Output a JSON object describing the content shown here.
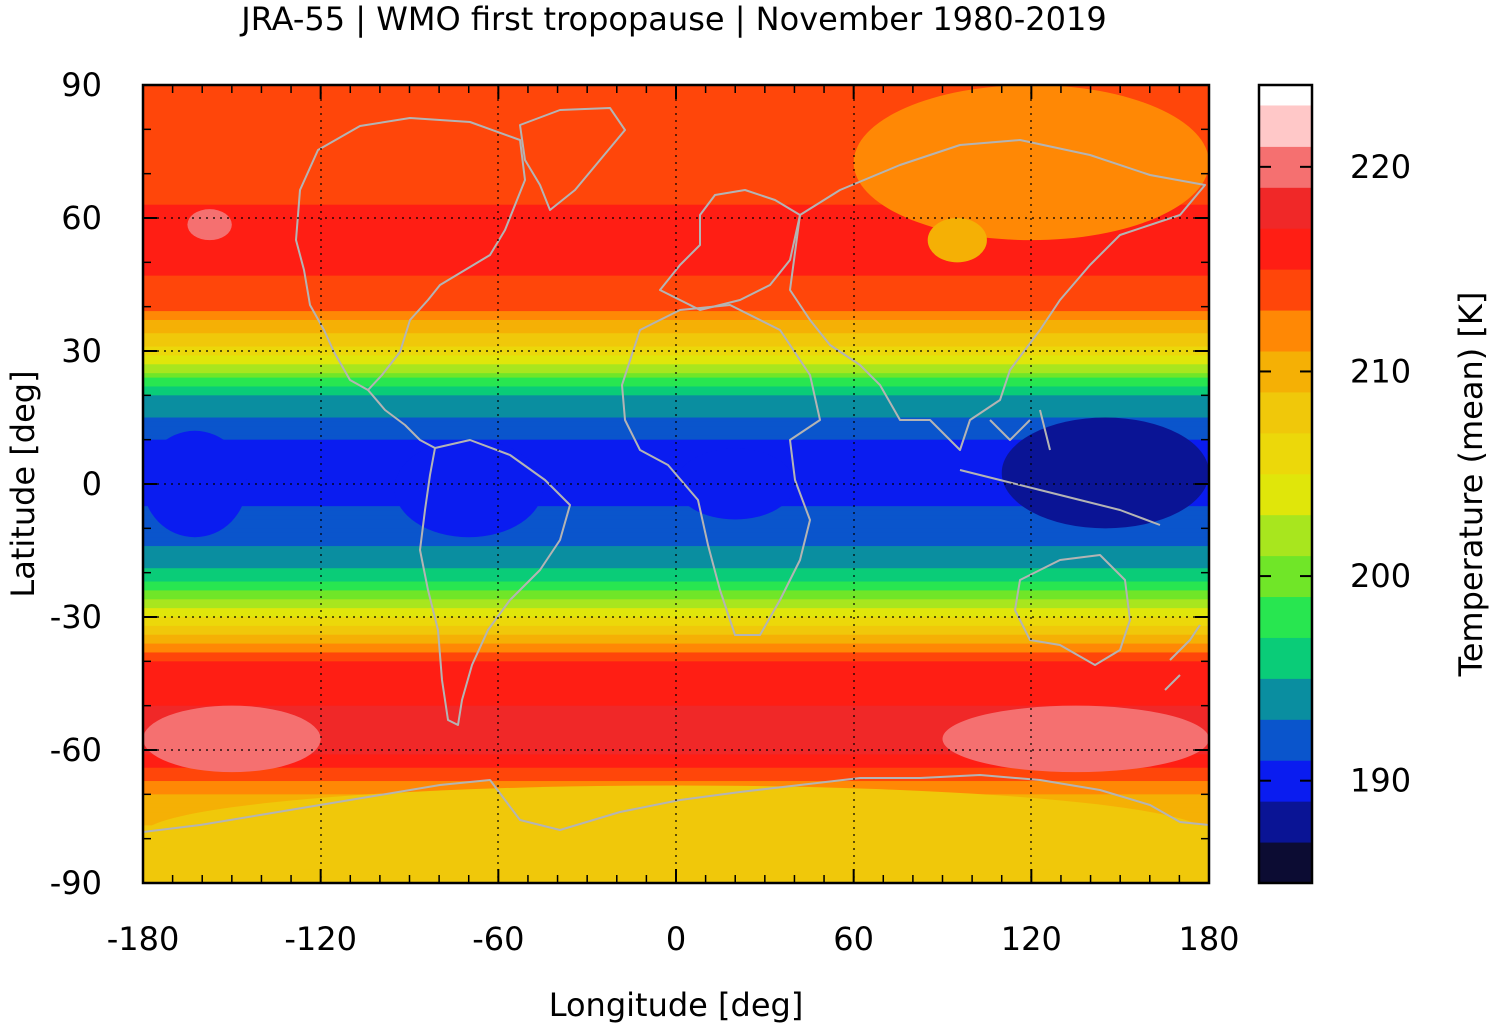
{
  "chart_data": {
    "type": "heatmap",
    "title": "JRA-55 | WMO first tropopause | November 1980-2019",
    "xlabel": "Longitude [deg]",
    "ylabel": "Latitude [deg]",
    "colorbar_label": "Temperature (mean) [K]",
    "xlim": [
      -180,
      180
    ],
    "ylim": [
      -90,
      90
    ],
    "x_ticks": [
      -180,
      -120,
      -60,
      0,
      60,
      120,
      180
    ],
    "y_ticks": [
      90,
      60,
      30,
      0,
      -30,
      -60,
      -90
    ],
    "x_tick_labels": [
      "-180",
      "-120",
      "-60",
      "0",
      "60",
      "120",
      "180"
    ],
    "y_tick_labels": [
      "90",
      "60",
      "30",
      "0",
      "-30",
      "-60",
      "-90"
    ],
    "colorbar_ticks": [
      190,
      200,
      210,
      220
    ],
    "colorbar_tick_labels": [
      "190",
      "200",
      "210",
      "220"
    ],
    "colorbar_range": [
      185,
      224
    ],
    "levels_step": 2,
    "grid": true,
    "colormap": [
      {
        "from": 185,
        "to": 187,
        "color": "#0c0c33"
      },
      {
        "from": 187,
        "to": 189,
        "color": "#0a1495"
      },
      {
        "from": 189,
        "to": 191,
        "color": "#0a1cf0"
      },
      {
        "from": 191,
        "to": 193,
        "color": "#0a55cc"
      },
      {
        "from": 193,
        "to": 195,
        "color": "#0a8ea0"
      },
      {
        "from": 195,
        "to": 197,
        "color": "#0acc78"
      },
      {
        "from": 197,
        "to": 199,
        "color": "#28e650"
      },
      {
        "from": 199,
        "to": 201,
        "color": "#70e628"
      },
      {
        "from": 201,
        "to": 203,
        "color": "#a8e61e"
      },
      {
        "from": 203,
        "to": 205,
        "color": "#e0e60a"
      },
      {
        "from": 205,
        "to": 207,
        "color": "#ecd80a"
      },
      {
        "from": 207,
        "to": 209,
        "color": "#f0c80a"
      },
      {
        "from": 209,
        "to": 211,
        "color": "#f5b005"
      },
      {
        "from": 211,
        "to": 213,
        "color": "#ff8805"
      },
      {
        "from": 213,
        "to": 215,
        "color": "#ff460a"
      },
      {
        "from": 215,
        "to": 217,
        "color": "#ff1e14"
      },
      {
        "from": 217,
        "to": 219,
        "color": "#f02828"
      },
      {
        "from": 219,
        "to": 221,
        "color": "#f57070"
      },
      {
        "from": 221,
        "to": 223,
        "color": "#ffc8c8"
      }
    ],
    "zonal_mean_profile": [
      {
        "lat": -90,
        "temp": 207.5
      },
      {
        "lat": -80,
        "temp": 208.0
      },
      {
        "lat": -70,
        "temp": 211.0
      },
      {
        "lat": -60,
        "temp": 217.5
      },
      {
        "lat": -50,
        "temp": 217.0
      },
      {
        "lat": -40,
        "temp": 215.5
      },
      {
        "lat": -30,
        "temp": 205.0
      },
      {
        "lat": -20,
        "temp": 195.5
      },
      {
        "lat": -10,
        "temp": 191.5
      },
      {
        "lat": 0,
        "temp": 190.5
      },
      {
        "lat": 10,
        "temp": 191.0
      },
      {
        "lat": 20,
        "temp": 195.0
      },
      {
        "lat": 30,
        "temp": 206.0
      },
      {
        "lat": 40,
        "temp": 213.5
      },
      {
        "lat": 50,
        "temp": 215.5
      },
      {
        "lat": 60,
        "temp": 215.5
      },
      {
        "lat": 70,
        "temp": 214.0
      },
      {
        "lat": 80,
        "temp": 213.0
      },
      {
        "lat": 90,
        "temp": 213.0
      }
    ],
    "features": [
      {
        "region": "western Pacific tropics",
        "lon_range": [
          110,
          180
        ],
        "lat_range": [
          -10,
          15
        ],
        "temp": 188
      },
      {
        "region": "equatorial Africa",
        "lon_range": [
          0,
          40
        ],
        "lat_range": [
          -8,
          8
        ],
        "temp": 190
      },
      {
        "region": "South America tropics",
        "lon_range": [
          -95,
          -45
        ],
        "lat_range": [
          -12,
          10
        ],
        "temp": 190
      },
      {
        "region": "eastern Pacific tropics",
        "lon_range": [
          -180,
          -145
        ],
        "lat_range": [
          -12,
          12
        ],
        "temp": 190
      },
      {
        "region": "Southern Ocean maximum (east)",
        "lon_range": [
          90,
          180
        ],
        "lat_range": [
          -65,
          -50
        ],
        "temp": 220
      },
      {
        "region": "Southern Ocean maximum (west)",
        "lon_range": [
          -180,
          -120
        ],
        "lat_range": [
          -65,
          -50
        ],
        "temp": 220
      },
      {
        "region": "North Pacific maximum",
        "lon_range": [
          -165,
          -150
        ],
        "lat_range": [
          55,
          62
        ],
        "temp": 220
      },
      {
        "region": "Eurasian Arctic minimum",
        "lon_range": [
          60,
          180
        ],
        "lat_range": [
          55,
          90
        ],
        "temp": 212
      },
      {
        "region": "Siberian cold spot",
        "lon_range": [
          85,
          105
        ],
        "lat_range": [
          50,
          60
        ],
        "temp": 210
      },
      {
        "region": "Antarctica",
        "lon_range": [
          -180,
          180
        ],
        "lat_range": [
          -90,
          -68
        ],
        "temp": 207
      }
    ]
  }
}
